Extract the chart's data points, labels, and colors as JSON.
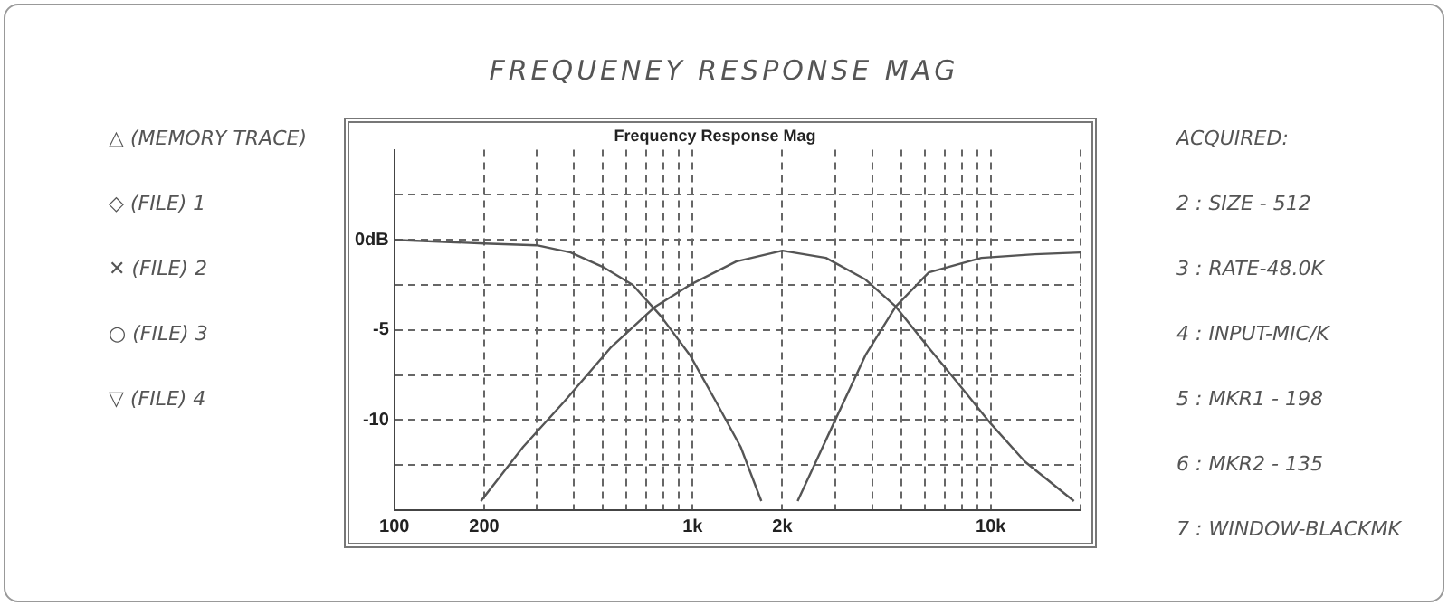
{
  "chart_data": {
    "type": "line",
    "title": "FREQUENEY RESPONSE MAG",
    "subtitle": "Frequency Response Mag",
    "log": "x",
    "grid": true,
    "legend": false,
    "marker": "none",
    "line_style": "solid",
    "xlim": [
      100,
      20000
    ],
    "ylim": [
      -15,
      5
    ],
    "xticks": [
      {
        "value": 100,
        "label": "100"
      },
      {
        "value": 200,
        "label": "200"
      },
      {
        "value": 300,
        "label": null
      },
      {
        "value": 400,
        "label": null
      },
      {
        "value": 500,
        "label": null
      },
      {
        "value": 600,
        "label": null
      },
      {
        "value": 700,
        "label": null
      },
      {
        "value": 800,
        "label": null
      },
      {
        "value": 900,
        "label": null
      },
      {
        "value": 1000,
        "label": "1k"
      },
      {
        "value": 2000,
        "label": "2k"
      },
      {
        "value": 3000,
        "label": null
      },
      {
        "value": 4000,
        "label": null
      },
      {
        "value": 5000,
        "label": null
      },
      {
        "value": 6000,
        "label": null
      },
      {
        "value": 7000,
        "label": null
      },
      {
        "value": 8000,
        "label": null
      },
      {
        "value": 9000,
        "label": null
      },
      {
        "value": 10000,
        "label": "10k"
      },
      {
        "value": 20000,
        "label": null
      }
    ],
    "yticks": [
      {
        "value": 2.5,
        "label": null
      },
      {
        "value": 0,
        "label": "0dB"
      },
      {
        "value": -2.5,
        "label": null
      },
      {
        "value": -5,
        "label": "-5"
      },
      {
        "value": -7.5,
        "label": null
      },
      {
        "value": -10,
        "label": "-10"
      },
      {
        "value": -12.5,
        "label": null
      }
    ],
    "series": [
      {
        "color": "#555555",
        "x": [
          100,
          200,
          300,
          390,
          500,
          630,
          780,
          980,
          1200,
          1450,
          1700
        ],
        "values": [
          0,
          -0.2,
          -0.3,
          -0.7,
          -1.5,
          -2.5,
          -4.2,
          -6.4,
          -9,
          -11.5,
          -14.5
        ]
      },
      {
        "color": "#555555",
        "x": [
          195,
          270,
          370,
          530,
          750,
          980,
          1400,
          2000,
          2800,
          3800,
          4800,
          6200,
          7800,
          10000,
          13000,
          19000
        ],
        "values": [
          -14.5,
          -11.5,
          -9,
          -6,
          -3.7,
          -2.5,
          -1.2,
          -0.6,
          -1,
          -2.2,
          -3.7,
          -6,
          -8,
          -10.2,
          -12.3,
          -14.5
        ]
      },
      {
        "color": "#555555",
        "x": [
          2250,
          2950,
          3800,
          4800,
          6200,
          9300,
          14000,
          20000
        ],
        "values": [
          -14.5,
          -10.3,
          -6.4,
          -3.7,
          -1.8,
          -1,
          -0.8,
          -0.7
        ]
      }
    ],
    "annotations": [
      "△ (MEMORY TRACE)",
      "◇ (FILE) 1",
      "✕ (FILE) 2",
      "○ (FILE) 3",
      "▽ (FILE) 4",
      "ACQUIRED:",
      "2 :  SIZE - 512",
      "3 :  RATE-48.0K",
      "4 : INPUT-MIC/K",
      "5 : MKR1 - 198",
      "6 : MKR2 - 135",
      "7 : WINDOW-BLACKMK"
    ]
  }
}
